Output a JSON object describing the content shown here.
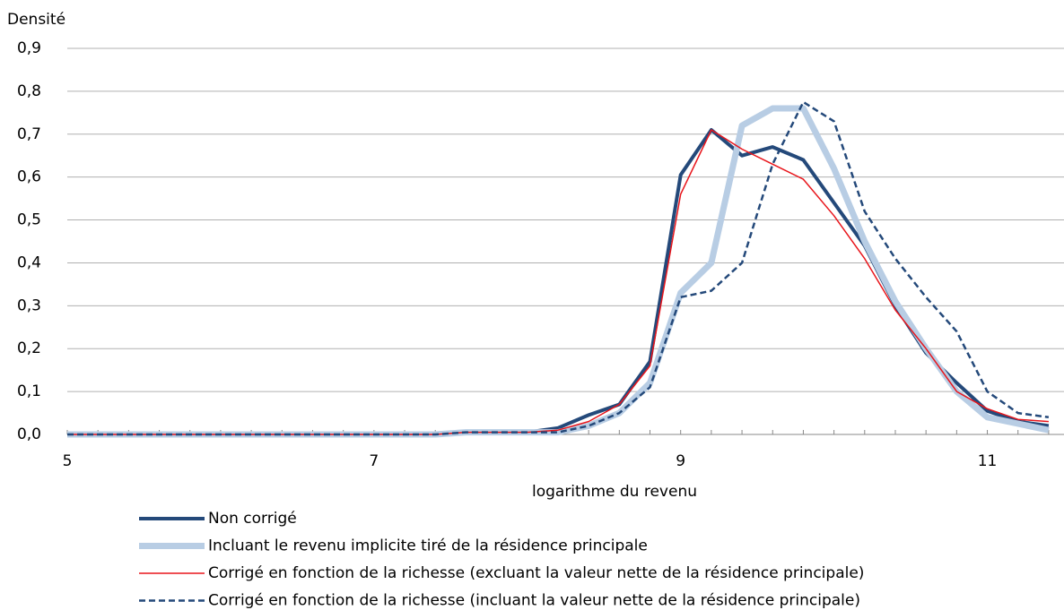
{
  "chart_data": {
    "type": "line",
    "y_title": "Densité",
    "x_title": "logarithme du revenu",
    "x": [
      5.0,
      5.2,
      5.4,
      5.6,
      5.8,
      6.0,
      6.2,
      6.4,
      6.6,
      6.8,
      7.0,
      7.2,
      7.4,
      7.6,
      7.8,
      8.0,
      8.2,
      8.4,
      8.6,
      8.8,
      9.0,
      9.2,
      9.4,
      9.6,
      9.8,
      10.0,
      10.2,
      10.4,
      10.6,
      10.8,
      11.0,
      11.2,
      11.4
    ],
    "xlim": [
      5,
      11.5
    ],
    "xticks": [
      5,
      7,
      9,
      11
    ],
    "ylim": [
      0,
      0.9
    ],
    "yticks": [
      {
        "value": 0,
        "label": "0,0"
      },
      {
        "value": 0.1,
        "label": "0,1"
      },
      {
        "value": 0.2,
        "label": "0,2"
      },
      {
        "value": 0.3,
        "label": "0,3"
      },
      {
        "value": 0.4,
        "label": "0,4"
      },
      {
        "value": 0.5,
        "label": "0,5"
      },
      {
        "value": 0.6,
        "label": "0,6"
      },
      {
        "value": 0.7,
        "label": "0,7"
      },
      {
        "value": 0.8,
        "label": "0,8"
      },
      {
        "value": 0.9,
        "label": "0,9"
      }
    ],
    "grid": true,
    "series": [
      {
        "name": "Non corrigé",
        "color": "#24497a",
        "line_width": 4,
        "dash": false,
        "values": [
          0,
          0,
          0,
          0,
          0,
          0,
          0,
          0,
          0,
          0,
          0,
          0,
          0,
          0.005,
          0.005,
          0.005,
          0.015,
          0.045,
          0.07,
          0.17,
          0.605,
          0.71,
          0.65,
          0.67,
          0.64,
          0.54,
          0.44,
          0.3,
          0.19,
          0.12,
          0.055,
          0.03,
          0.02
        ]
      },
      {
        "name": "Incluant le revenu implicite tiré de la résidence principale",
        "color": "#b8cde4",
        "line_width": 7,
        "dash": false,
        "values": [
          0,
          0,
          0,
          0,
          0,
          0,
          0,
          0,
          0,
          0,
          0,
          0,
          0,
          0.005,
          0.005,
          0.005,
          0.005,
          0.02,
          0.05,
          0.12,
          0.33,
          0.4,
          0.72,
          0.76,
          0.76,
          0.62,
          0.45,
          0.31,
          0.2,
          0.1,
          0.04,
          0.025,
          0.01
        ]
      },
      {
        "name": "Corrigé en fonction de la richesse (excluant la valeur nette de la résidence principale)",
        "color": "#e8151b",
        "line_width": 1.5,
        "dash": false,
        "values": [
          0,
          0,
          0,
          0,
          0,
          0,
          0,
          0,
          0,
          0,
          0,
          0,
          0,
          0.005,
          0.005,
          0.005,
          0.01,
          0.03,
          0.07,
          0.16,
          0.56,
          0.71,
          0.665,
          0.63,
          0.595,
          0.51,
          0.41,
          0.29,
          0.2,
          0.1,
          0.06,
          0.035,
          0.03
        ]
      },
      {
        "name": "Corrigé en fonction de la richesse (incluant la valeur nette de la résidence principale)",
        "color": "#24497a",
        "line_width": 2.5,
        "dash": true,
        "values": [
          0,
          0,
          0,
          0,
          0,
          0,
          0,
          0,
          0,
          0,
          0,
          0,
          0,
          0.005,
          0.005,
          0.005,
          0.005,
          0.02,
          0.05,
          0.11,
          0.32,
          0.335,
          0.4,
          0.63,
          0.775,
          0.73,
          0.52,
          0.41,
          0.32,
          0.24,
          0.1,
          0.05,
          0.04
        ]
      }
    ]
  }
}
